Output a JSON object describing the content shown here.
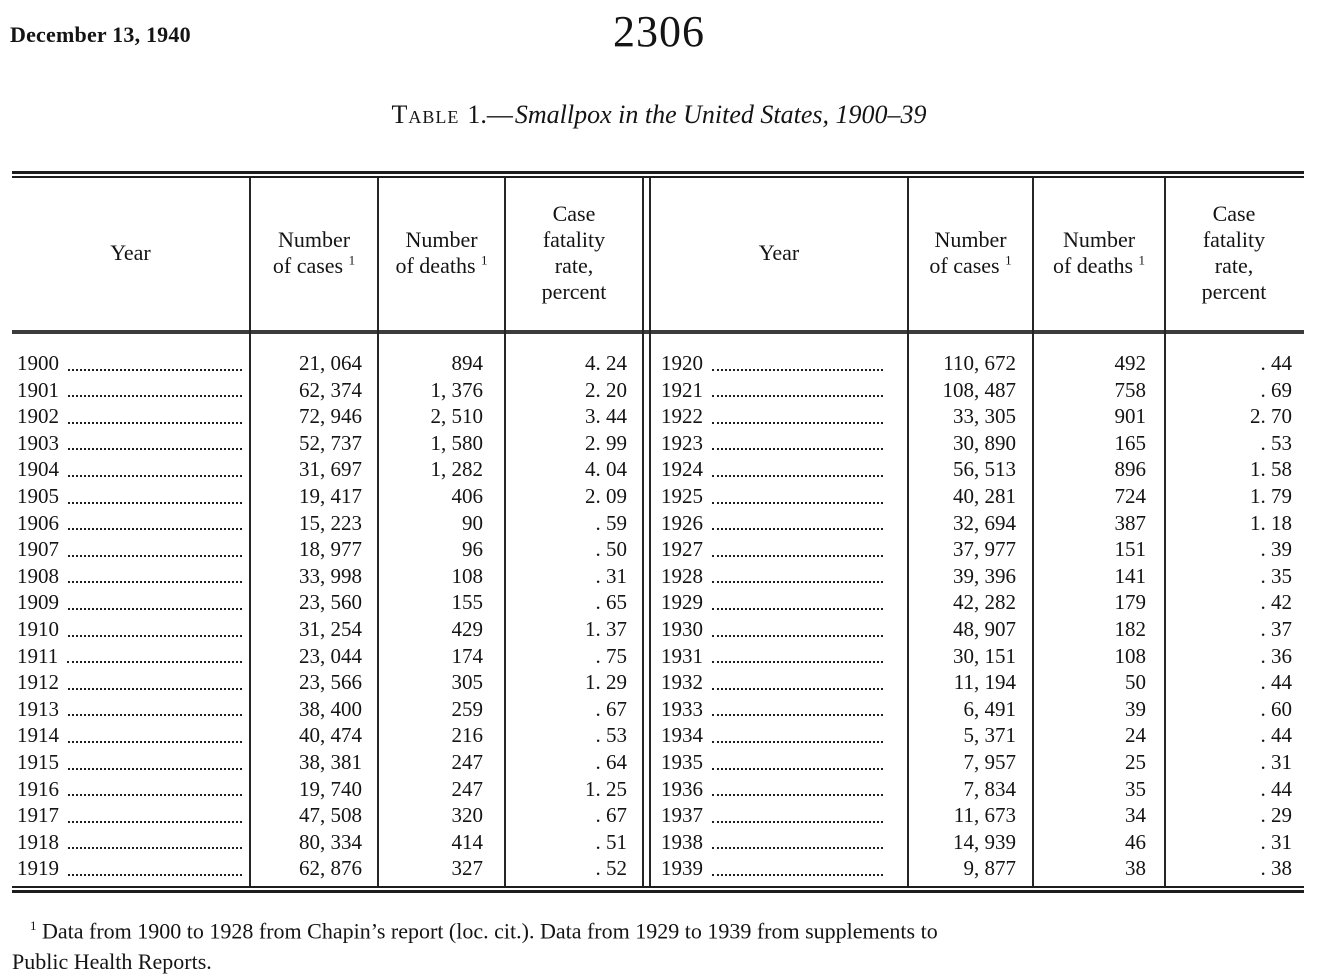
{
  "page": {
    "date": "December 13, 1940",
    "page_number": "2306"
  },
  "title": {
    "label": "Table",
    "sep": "1.—",
    "italic": "Smallpox in the United States, 1900–39"
  },
  "table": {
    "headers": {
      "year": "Year",
      "number_line": "Number",
      "cases_line": "of cases",
      "deaths_line": "of deaths",
      "rate_l1": "Case",
      "rate_l2": "fatality",
      "rate_l3": "rate,",
      "rate_l4": "percent",
      "footnote_sup": "1"
    },
    "left_rows": [
      {
        "year": "1900",
        "cases": "21, 064",
        "deaths": "894",
        "rate": "4. 24"
      },
      {
        "year": "1901",
        "cases": "62, 374",
        "deaths": "1, 376",
        "rate": "2. 20"
      },
      {
        "year": "1902",
        "cases": "72, 946",
        "deaths": "2, 510",
        "rate": "3. 44"
      },
      {
        "year": "1903",
        "cases": "52, 737",
        "deaths": "1, 580",
        "rate": "2. 99"
      },
      {
        "year": "1904",
        "cases": "31, 697",
        "deaths": "1, 282",
        "rate": "4. 04"
      },
      {
        "year": "1905",
        "cases": "19, 417",
        "deaths": "406",
        "rate": "2. 09"
      },
      {
        "year": "1906",
        "cases": "15, 223",
        "deaths": "90",
        "rate": ". 59"
      },
      {
        "year": "1907",
        "cases": "18, 977",
        "deaths": "96",
        "rate": ". 50"
      },
      {
        "year": "1908",
        "cases": "33, 998",
        "deaths": "108",
        "rate": ". 31"
      },
      {
        "year": "1909",
        "cases": "23, 560",
        "deaths": "155",
        "rate": ". 65"
      },
      {
        "year": "1910",
        "cases": "31, 254",
        "deaths": "429",
        "rate": "1. 37"
      },
      {
        "year": "1911",
        "cases": "23, 044",
        "deaths": "174",
        "rate": ". 75"
      },
      {
        "year": "1912",
        "cases": "23, 566",
        "deaths": "305",
        "rate": "1. 29"
      },
      {
        "year": "1913",
        "cases": "38, 400",
        "deaths": "259",
        "rate": ". 67"
      },
      {
        "year": "1914",
        "cases": "40, 474",
        "deaths": "216",
        "rate": ". 53"
      },
      {
        "year": "1915",
        "cases": "38, 381",
        "deaths": "247",
        "rate": ". 64"
      },
      {
        "year": "1916",
        "cases": "19, 740",
        "deaths": "247",
        "rate": "1. 25"
      },
      {
        "year": "1917",
        "cases": "47, 508",
        "deaths": "320",
        "rate": ". 67"
      },
      {
        "year": "1918",
        "cases": "80, 334",
        "deaths": "414",
        "rate": ". 51"
      },
      {
        "year": "1919",
        "cases": "62, 876",
        "deaths": "327",
        "rate": ". 52"
      }
    ],
    "right_rows": [
      {
        "year": "1920",
        "cases": "110, 672",
        "deaths": "492",
        "rate": ". 44"
      },
      {
        "year": "1921",
        "cases": "108, 487",
        "deaths": "758",
        "rate": ". 69"
      },
      {
        "year": "1922",
        "cases": "33, 305",
        "deaths": "901",
        "rate": "2. 70"
      },
      {
        "year": "1923",
        "cases": "30, 890",
        "deaths": "165",
        "rate": ". 53"
      },
      {
        "year": "1924",
        "cases": "56, 513",
        "deaths": "896",
        "rate": "1. 58"
      },
      {
        "year": "1925",
        "cases": "40, 281",
        "deaths": "724",
        "rate": "1. 79"
      },
      {
        "year": "1926",
        "cases": "32, 694",
        "deaths": "387",
        "rate": "1. 18"
      },
      {
        "year": "1927",
        "cases": "37, 977",
        "deaths": "151",
        "rate": ". 39"
      },
      {
        "year": "1928",
        "cases": "39, 396",
        "deaths": "141",
        "rate": ". 35"
      },
      {
        "year": "1929",
        "cases": "42, 282",
        "deaths": "179",
        "rate": ". 42"
      },
      {
        "year": "1930",
        "cases": "48, 907",
        "deaths": "182",
        "rate": ". 37"
      },
      {
        "year": "1931",
        "cases": "30, 151",
        "deaths": "108",
        "rate": ". 36"
      },
      {
        "year": "1932",
        "cases": "11, 194",
        "deaths": "50",
        "rate": ". 44"
      },
      {
        "year": "1933",
        "cases": "6, 491",
        "deaths": "39",
        "rate": ". 60"
      },
      {
        "year": "1934",
        "cases": "5, 371",
        "deaths": "24",
        "rate": ". 44"
      },
      {
        "year": "1935",
        "cases": "7, 957",
        "deaths": "25",
        "rate": ". 31"
      },
      {
        "year": "1936",
        "cases": "7, 834",
        "deaths": "35",
        "rate": ". 44"
      },
      {
        "year": "1937",
        "cases": "11, 673",
        "deaths": "34",
        "rate": ". 29"
      },
      {
        "year": "1938",
        "cases": "14, 939",
        "deaths": "46",
        "rate": ". 31"
      },
      {
        "year": "1939",
        "cases": "9, 877",
        "deaths": "38",
        "rate": ". 38"
      }
    ]
  },
  "footnote": {
    "marker": "1",
    "line1": "Data from 1900 to 1928 from Chapin’s report (loc. cit.).  Data from 1929 to 1939 from supplements to",
    "line2": "Public Health Reports."
  }
}
